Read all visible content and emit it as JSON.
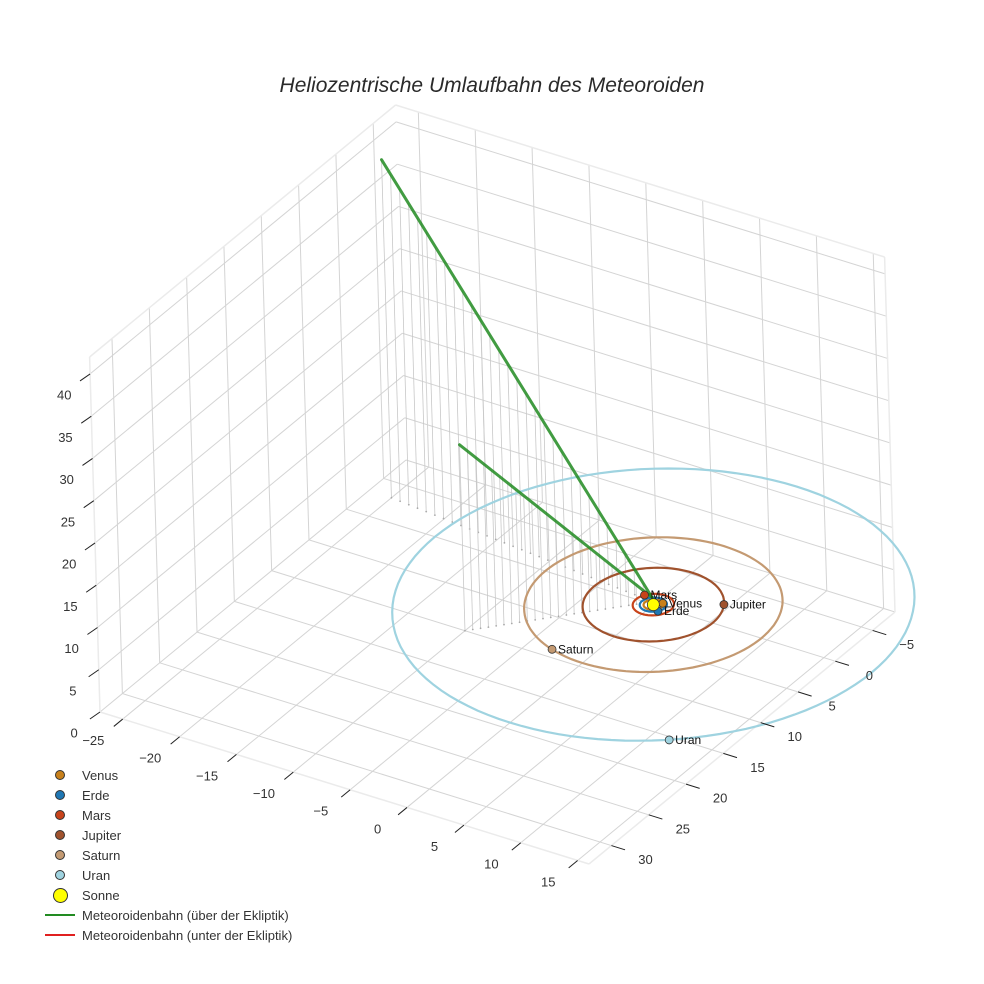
{
  "title": "Heliozentrische Umlaufbahn des Meteoroiden",
  "legend": [
    {
      "label": "Venus",
      "type": "marker",
      "color": "#c8801a",
      "size": 10
    },
    {
      "label": "Erde",
      "type": "marker",
      "color": "#1f77b4",
      "size": 10
    },
    {
      "label": "Mars",
      "type": "marker",
      "color": "#c8431a",
      "size": 10
    },
    {
      "label": "Jupiter",
      "type": "marker",
      "color": "#a0522d",
      "size": 10
    },
    {
      "label": "Saturn",
      "type": "marker",
      "color": "#c49a72",
      "size": 10
    },
    {
      "label": "Uran",
      "type": "marker",
      "color": "#9fd3e0",
      "size": 10
    },
    {
      "label": "Sonne",
      "type": "marker",
      "color": "#ffff00",
      "size": 16
    },
    {
      "label": "Meteoroidenbahn (über der Ekliptik)",
      "type": "line",
      "color": "#228b22"
    },
    {
      "label": "Meteoroidenbahn (unter der Ekliptik)",
      "type": "line",
      "color": "#e02020"
    }
  ],
  "axes": {
    "x_ticks": [
      "−25",
      "−20",
      "−15",
      "−10",
      "−5",
      "0",
      "5",
      "10",
      "15"
    ],
    "y_ticks": [
      "−5",
      "0",
      "5",
      "10",
      "15",
      "20",
      "25",
      "30"
    ],
    "z_ticks": [
      "0",
      "5",
      "10",
      "15",
      "20",
      "25",
      "30",
      "35",
      "40"
    ]
  },
  "planet_labels": {
    "venus": "Venus",
    "erde": "Erde",
    "mars": "Mars",
    "jupiter": "Jupiter",
    "saturn": "Saturn",
    "uran": "Uran"
  },
  "chart_data": {
    "type": "scatter3d",
    "title": "Heliozentrische Umlaufbahn des Meteoroiden",
    "xlabel": "",
    "ylabel": "",
    "zlabel": "",
    "xlim": [
      -27,
      16
    ],
    "ylim": [
      -8,
      33
    ],
    "zlim": [
      0,
      42
    ],
    "grid": true,
    "legend_position": "bottom-left",
    "orbits": [
      {
        "name": "Venus",
        "radius_au": 0.72,
        "color": "#c8801a"
      },
      {
        "name": "Erde",
        "radius_au": 1.0,
        "color": "#1f77b4"
      },
      {
        "name": "Mars",
        "radius_au": 1.52,
        "color": "#c8431a"
      },
      {
        "name": "Jupiter",
        "radius_au": 5.2,
        "color": "#a0522d"
      },
      {
        "name": "Saturn",
        "radius_au": 9.5,
        "color": "#c49a72"
      },
      {
        "name": "Uran",
        "radius_au": 19.2,
        "color": "#9fd3e0"
      }
    ],
    "planets": [
      {
        "name": "Venus",
        "x": 0.5,
        "y": -0.5,
        "z": 0
      },
      {
        "name": "Erde",
        "x": 0.8,
        "y": 0.6,
        "z": 0
      },
      {
        "name": "Mars",
        "x": -1.3,
        "y": -0.8,
        "z": 0
      },
      {
        "name": "Jupiter",
        "x": 4.5,
        "y": -2.6,
        "z": 0
      },
      {
        "name": "Saturn",
        "x": -3.0,
        "y": 9.0,
        "z": 0
      },
      {
        "name": "Uran",
        "x": 11.5,
        "y": 15.4,
        "z": 0
      },
      {
        "name": "Sonne",
        "x": 0,
        "y": 0,
        "z": 0
      }
    ],
    "series": [
      {
        "name": "Meteoroidenbahn (über der Ekliptik)",
        "color": "#228b22",
        "points": [
          [
            -25,
            -3,
            40
          ],
          [
            -0.3,
            -0.3,
            0.5
          ]
        ],
        "segment2": [
          [
            -10,
            10,
            22
          ],
          [
            -0.3,
            -0.3,
            0.5
          ]
        ]
      },
      {
        "name": "Meteoroidenbahn (unter der Ekliptik)",
        "color": "#e02020",
        "points": []
      }
    ]
  }
}
